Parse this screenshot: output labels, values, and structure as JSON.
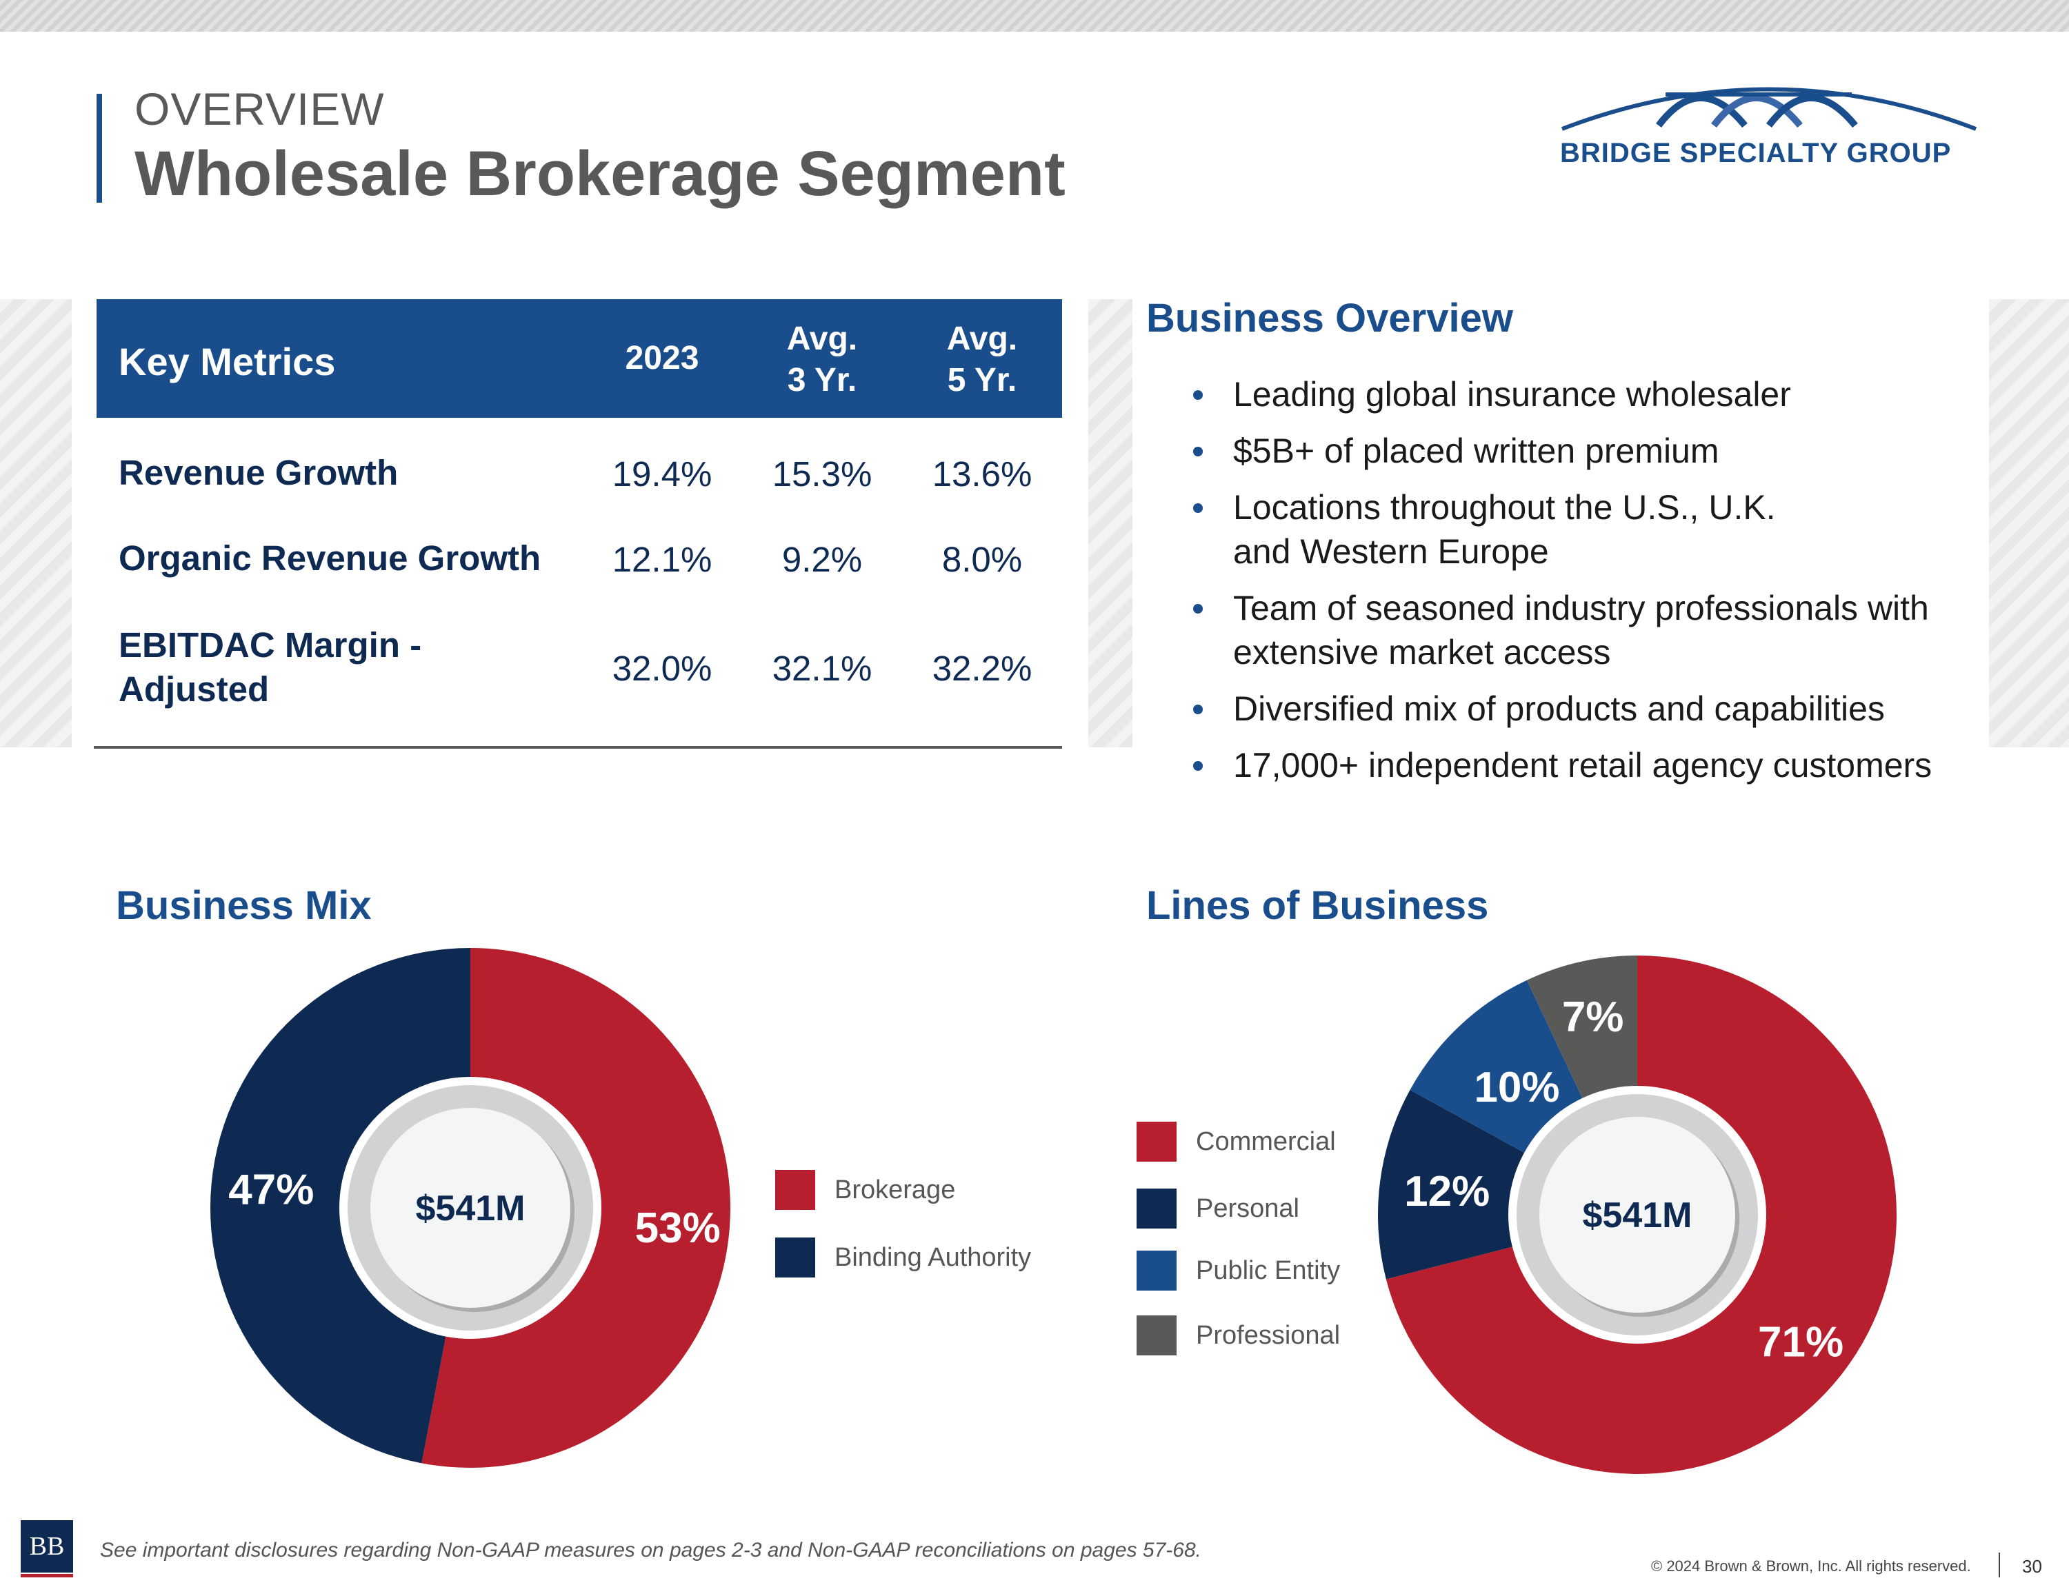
{
  "header": {
    "eyebrow": "OVERVIEW",
    "title": "Wholesale Brokerage Segment",
    "logo_text": "BRIDGE SPECIALTY GROUP"
  },
  "key_metrics": {
    "title": "Key Metrics",
    "columns": [
      "2023",
      "Avg.\n3 Yr.",
      "Avg.\n5 Yr."
    ],
    "rows": [
      {
        "label": "Revenue Growth",
        "values": [
          "19.4%",
          "15.3%",
          "13.6%"
        ]
      },
      {
        "label": "Organic Revenue Growth",
        "values": [
          "12.1%",
          "9.2%",
          "8.0%"
        ]
      },
      {
        "label": "EBITDAC Margin -\nAdjusted",
        "values": [
          "32.0%",
          "32.1%",
          "32.2%"
        ]
      }
    ]
  },
  "business_overview": {
    "title": "Business Overview",
    "bullets": [
      "Leading global insurance wholesaler",
      "$5B+ of placed written premium",
      "Locations throughout the U.S., U.K.\nand Western Europe",
      "Team of seasoned industry professionals with\nextensive market access",
      "Diversified mix of products and capabilities",
      "17,000+ independent retail agency customers"
    ]
  },
  "chart_data": [
    {
      "type": "pie",
      "title": "Business Mix",
      "center_label": "$541M",
      "categories": [
        "Brokerage",
        "Binding Authority"
      ],
      "values": [
        53,
        47
      ],
      "labels": [
        "53%",
        "47%"
      ],
      "colors": [
        "#b71f2e",
        "#0e2a52"
      ],
      "legend": "right"
    },
    {
      "type": "pie",
      "title": "Lines of Business",
      "center_label": "$541M",
      "categories": [
        "Commercial",
        "Personal",
        "Public Entity",
        "Professional"
      ],
      "values": [
        71,
        12,
        10,
        7
      ],
      "labels": [
        "71%",
        "12%",
        "10%",
        "7%"
      ],
      "colors": [
        "#b71f2e",
        "#0e2a52",
        "#1a4d8c",
        "#595a58"
      ],
      "legend": "left"
    }
  ],
  "footer": {
    "disclosure": "See important disclosures regarding Non-GAAP measures on pages 2-3 and Non-GAAP reconciliations on pages 57-68.",
    "copyright": "© 2024 Brown & Brown, Inc. All rights reserved.",
    "page_number": "30",
    "logo_text": "BB"
  }
}
